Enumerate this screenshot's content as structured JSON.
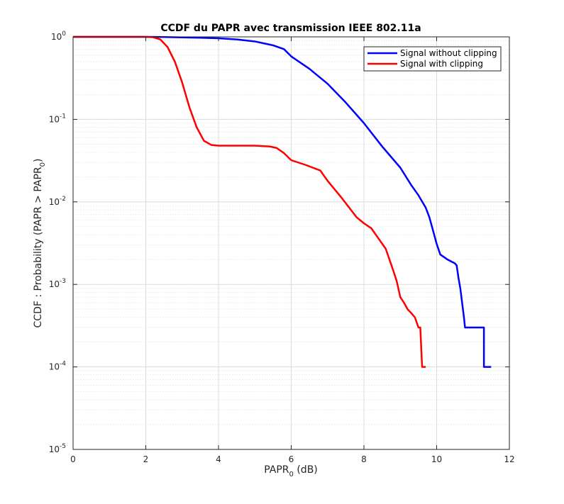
{
  "chart_data": {
    "type": "line",
    "title": "CCDF du PAPR avec transmission IEEE 802.11a",
    "xlabel": {
      "main": "PAPR",
      "sub": "0",
      "suffix": " (dB)"
    },
    "ylabel": {
      "prefix": "CCDF : Probability (PAPR > PAPR",
      "sub": "0",
      "suffix": ")"
    },
    "xlim": [
      0,
      12
    ],
    "ylim": [
      1e-05,
      1
    ],
    "yscale": "log",
    "grid": true,
    "minor_grid": true,
    "legend_position": "top-right",
    "x_ticks": [
      "0",
      "2",
      "4",
      "6",
      "8",
      "10",
      "12"
    ],
    "y_ticks": [
      {
        "base": "10",
        "exp": "-5"
      },
      {
        "base": "10",
        "exp": "-4"
      },
      {
        "base": "10",
        "exp": "-3"
      },
      {
        "base": "10",
        "exp": "-2"
      },
      {
        "base": "10",
        "exp": "-1"
      },
      {
        "base": "10",
        "exp": "0"
      }
    ],
    "series": [
      {
        "name": "Signal without clipping",
        "color": "#0000ff",
        "x": [
          0,
          2.0,
          2.5,
          3.0,
          3.5,
          4.0,
          4.5,
          5.0,
          5.5,
          5.8,
          6.0,
          6.5,
          7.0,
          7.5,
          8.0,
          8.5,
          9.0,
          9.3,
          9.5,
          9.7,
          9.8,
          9.9,
          10.0,
          10.1,
          10.3,
          10.5,
          10.55,
          10.6,
          10.65,
          10.7,
          10.75,
          10.78,
          11.0,
          11.2,
          11.3,
          11.3,
          11.35,
          11.5
        ],
        "y": [
          1,
          1,
          0.995,
          0.985,
          0.975,
          0.96,
          0.93,
          0.88,
          0.79,
          0.71,
          0.58,
          0.41,
          0.27,
          0.16,
          0.09,
          0.047,
          0.026,
          0.016,
          0.012,
          0.0085,
          0.0065,
          0.0045,
          0.0031,
          0.0023,
          0.002,
          0.0018,
          0.0017,
          0.0012,
          0.0009,
          0.0006,
          0.0004,
          0.0003,
          0.0003,
          0.0003,
          0.0003,
          0.0001,
          0.0001,
          0.0001
        ]
      },
      {
        "name": "Signal with clipping",
        "color": "#ff0000",
        "x": [
          0,
          2.0,
          2.2,
          2.4,
          2.6,
          2.8,
          3.0,
          3.2,
          3.4,
          3.6,
          3.8,
          4.0,
          4.5,
          5.0,
          5.4,
          5.6,
          5.8,
          6.0,
          6.4,
          6.8,
          7.0,
          7.4,
          7.8,
          8.0,
          8.2,
          8.4,
          8.6,
          8.8,
          8.9,
          9.0,
          9.1,
          9.2,
          9.3,
          9.4,
          9.5,
          9.55,
          9.6,
          9.7
        ],
        "y": [
          1,
          1,
          0.99,
          0.93,
          0.75,
          0.5,
          0.28,
          0.14,
          0.08,
          0.055,
          0.049,
          0.048,
          0.048,
          0.048,
          0.047,
          0.045,
          0.039,
          0.032,
          0.028,
          0.024,
          0.018,
          0.011,
          0.0065,
          0.0055,
          0.0048,
          0.0036,
          0.0027,
          0.0015,
          0.0011,
          0.0007,
          0.0006,
          0.0005,
          0.00045,
          0.0004,
          0.0003,
          0.0003,
          0.0001,
          0.0001
        ]
      }
    ]
  }
}
